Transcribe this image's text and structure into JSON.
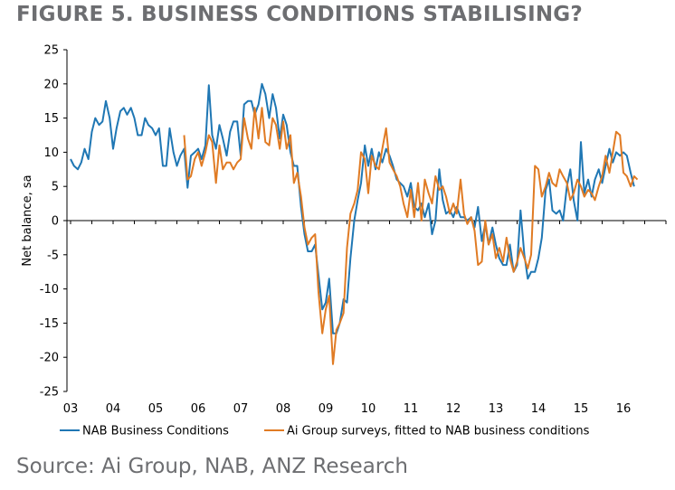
{
  "title": "FIGURE 5. BUSINESS CONDITIONS STABILISING?",
  "source": "Source: Ai Group, NAB, ANZ Research",
  "chart_data": {
    "type": "line",
    "title": "FIGURE 5. BUSINESS CONDITIONS STABILISING?",
    "ylabel": "Net balance, sa",
    "xlabel": "",
    "ylim": [
      -25,
      25
    ],
    "yticks": [
      25,
      20,
      15,
      10,
      5,
      0,
      -5,
      -10,
      -15,
      -20,
      -25
    ],
    "xlim": [
      2003.0,
      2017.0
    ],
    "xticks": [
      {
        "label": "03",
        "value": 2003
      },
      {
        "label": "04",
        "value": 2004
      },
      {
        "label": "05",
        "value": 2005
      },
      {
        "label": "06",
        "value": 2006
      },
      {
        "label": "07",
        "value": 2007
      },
      {
        "label": "08",
        "value": 2008
      },
      {
        "label": "09",
        "value": 2009
      },
      {
        "label": "10",
        "value": 2010
      },
      {
        "label": "11",
        "value": 2011
      },
      {
        "label": "12",
        "value": 2012
      },
      {
        "label": "13",
        "value": 2013
      },
      {
        "label": "14",
        "value": 2014
      },
      {
        "label": "15",
        "value": 2015
      },
      {
        "label": "16",
        "value": 2016
      }
    ],
    "grid": false,
    "legend_position": "bottom",
    "series": [
      {
        "name": "NAB Business Conditions",
        "color": "#1f77b4",
        "points": [
          [
            2003.0,
            9.0
          ],
          [
            2003.08,
            8.0
          ],
          [
            2003.17,
            7.5
          ],
          [
            2003.25,
            8.5
          ],
          [
            2003.33,
            10.5
          ],
          [
            2003.42,
            9.0
          ],
          [
            2003.5,
            13.0
          ],
          [
            2003.58,
            15.0
          ],
          [
            2003.67,
            14.0
          ],
          [
            2003.75,
            14.5
          ],
          [
            2003.83,
            17.5
          ],
          [
            2003.92,
            15.0
          ],
          [
            2004.0,
            10.5
          ],
          [
            2004.08,
            13.5
          ],
          [
            2004.17,
            16.0
          ],
          [
            2004.25,
            16.5
          ],
          [
            2004.33,
            15.5
          ],
          [
            2004.42,
            16.5
          ],
          [
            2004.5,
            15.0
          ],
          [
            2004.58,
            12.5
          ],
          [
            2004.67,
            12.5
          ],
          [
            2004.75,
            15.0
          ],
          [
            2004.83,
            14.0
          ],
          [
            2004.92,
            13.5
          ],
          [
            2005.0,
            12.5
          ],
          [
            2005.08,
            13.5
          ],
          [
            2005.17,
            8.0
          ],
          [
            2005.25,
            8.0
          ],
          [
            2005.33,
            13.5
          ],
          [
            2005.42,
            10.0
          ],
          [
            2005.5,
            8.0
          ],
          [
            2005.58,
            9.5
          ],
          [
            2005.67,
            10.5
          ],
          [
            2005.75,
            4.8
          ],
          [
            2005.83,
            9.5
          ],
          [
            2005.92,
            10.0
          ],
          [
            2006.0,
            10.5
          ],
          [
            2006.08,
            9.0
          ],
          [
            2006.17,
            11.0
          ],
          [
            2006.25,
            19.8
          ],
          [
            2006.33,
            12.5
          ],
          [
            2006.42,
            10.5
          ],
          [
            2006.5,
            14.0
          ],
          [
            2006.58,
            12.0
          ],
          [
            2006.67,
            9.5
          ],
          [
            2006.75,
            13.0
          ],
          [
            2006.83,
            14.5
          ],
          [
            2006.92,
            14.5
          ],
          [
            2007.0,
            9.5
          ],
          [
            2007.08,
            17.0
          ],
          [
            2007.17,
            17.5
          ],
          [
            2007.25,
            17.5
          ],
          [
            2007.33,
            15.5
          ],
          [
            2007.42,
            17.0
          ],
          [
            2007.5,
            20.0
          ],
          [
            2007.58,
            18.5
          ],
          [
            2007.67,
            15.0
          ],
          [
            2007.75,
            18.5
          ],
          [
            2007.83,
            16.5
          ],
          [
            2007.92,
            12.0
          ],
          [
            2008.0,
            15.5
          ],
          [
            2008.08,
            14.0
          ],
          [
            2008.17,
            10.0
          ],
          [
            2008.25,
            8.0
          ],
          [
            2008.33,
            8.0
          ],
          [
            2008.42,
            2.0
          ],
          [
            2008.5,
            -2.0
          ],
          [
            2008.58,
            -4.5
          ],
          [
            2008.67,
            -4.5
          ],
          [
            2008.75,
            -3.5
          ],
          [
            2008.83,
            -8.0
          ],
          [
            2008.92,
            -13.0
          ],
          [
            2009.0,
            -12.0
          ],
          [
            2009.08,
            -8.5
          ],
          [
            2009.17,
            -16.5
          ],
          [
            2009.25,
            -16.5
          ],
          [
            2009.33,
            -15.0
          ],
          [
            2009.42,
            -11.5
          ],
          [
            2009.5,
            -12.0
          ],
          [
            2009.58,
            -5.5
          ],
          [
            2009.67,
            0.0
          ],
          [
            2009.75,
            3.0
          ],
          [
            2009.83,
            5.5
          ],
          [
            2009.92,
            11.0
          ],
          [
            2010.0,
            8.0
          ],
          [
            2010.08,
            10.5
          ],
          [
            2010.17,
            7.5
          ],
          [
            2010.25,
            10.0
          ],
          [
            2010.33,
            8.5
          ],
          [
            2010.42,
            10.5
          ],
          [
            2010.5,
            9.5
          ],
          [
            2010.58,
            8.0
          ],
          [
            2010.67,
            6.0
          ],
          [
            2010.75,
            5.5
          ],
          [
            2010.83,
            5.0
          ],
          [
            2010.92,
            3.5
          ],
          [
            2011.0,
            5.5
          ],
          [
            2011.08,
            2.0
          ],
          [
            2011.17,
            1.5
          ],
          [
            2011.25,
            2.5
          ],
          [
            2011.33,
            0.5
          ],
          [
            2011.42,
            2.5
          ],
          [
            2011.5,
            -2.0
          ],
          [
            2011.58,
            0.0
          ],
          [
            2011.67,
            7.5
          ],
          [
            2011.75,
            3.0
          ],
          [
            2011.83,
            1.0
          ],
          [
            2011.92,
            1.5
          ],
          [
            2012.0,
            0.5
          ],
          [
            2012.08,
            2.0
          ],
          [
            2012.17,
            0.5
          ],
          [
            2012.25,
            0.5
          ],
          [
            2012.33,
            0.0
          ],
          [
            2012.42,
            0.5
          ],
          [
            2012.5,
            -1.0
          ],
          [
            2012.58,
            2.0
          ],
          [
            2012.67,
            -3.0
          ],
          [
            2012.75,
            -0.5
          ],
          [
            2012.83,
            -3.5
          ],
          [
            2012.92,
            -1.0
          ],
          [
            2013.0,
            -3.5
          ],
          [
            2013.08,
            -5.5
          ],
          [
            2013.17,
            -6.5
          ],
          [
            2013.25,
            -6.5
          ],
          [
            2013.33,
            -3.5
          ],
          [
            2013.42,
            -7.5
          ],
          [
            2013.5,
            -6.5
          ],
          [
            2013.58,
            1.5
          ],
          [
            2013.67,
            -5.0
          ],
          [
            2013.75,
            -8.5
          ],
          [
            2013.83,
            -7.5
          ],
          [
            2013.92,
            -7.5
          ],
          [
            2014.0,
            -5.5
          ],
          [
            2014.08,
            -2.5
          ],
          [
            2014.17,
            4.5
          ],
          [
            2014.25,
            6.0
          ],
          [
            2014.33,
            1.5
          ],
          [
            2014.42,
            1.0
          ],
          [
            2014.5,
            1.5
          ],
          [
            2014.58,
            0.0
          ],
          [
            2014.67,
            5.0
          ],
          [
            2014.75,
            7.5
          ],
          [
            2014.83,
            3.0
          ],
          [
            2014.92,
            0.0
          ],
          [
            2015.0,
            11.5
          ],
          [
            2015.08,
            4.0
          ],
          [
            2015.17,
            6.0
          ],
          [
            2015.25,
            3.5
          ],
          [
            2015.33,
            6.0
          ],
          [
            2015.42,
            7.5
          ],
          [
            2015.5,
            5.5
          ],
          [
            2015.58,
            8.0
          ],
          [
            2015.67,
            10.5
          ],
          [
            2015.75,
            8.5
          ],
          [
            2015.83,
            10.0
          ],
          [
            2015.92,
            9.5
          ],
          [
            2016.0,
            10.0
          ],
          [
            2016.08,
            9.5
          ],
          [
            2016.17,
            7.0
          ],
          [
            2016.25,
            5.0
          ]
        ]
      },
      {
        "name": "Ai Group surveys, fitted to NAB business conditions",
        "color": "#e07b24",
        "points": [
          [
            2005.67,
            12.5
          ],
          [
            2005.75,
            6.0
          ],
          [
            2005.83,
            6.5
          ],
          [
            2005.92,
            9.0
          ],
          [
            2006.0,
            10.0
          ],
          [
            2006.08,
            8.0
          ],
          [
            2006.17,
            10.0
          ],
          [
            2006.25,
            12.5
          ],
          [
            2006.33,
            11.5
          ],
          [
            2006.42,
            5.5
          ],
          [
            2006.5,
            11.0
          ],
          [
            2006.58,
            7.5
          ],
          [
            2006.67,
            8.5
          ],
          [
            2006.75,
            8.5
          ],
          [
            2006.83,
            7.5
          ],
          [
            2006.92,
            8.5
          ],
          [
            2007.0,
            9.0
          ],
          [
            2007.08,
            15.0
          ],
          [
            2007.17,
            12.0
          ],
          [
            2007.25,
            10.5
          ],
          [
            2007.33,
            16.5
          ],
          [
            2007.42,
            12.0
          ],
          [
            2007.5,
            16.5
          ],
          [
            2007.58,
            11.5
          ],
          [
            2007.67,
            11.0
          ],
          [
            2007.75,
            15.0
          ],
          [
            2007.83,
            14.0
          ],
          [
            2007.92,
            10.5
          ],
          [
            2008.0,
            14.5
          ],
          [
            2008.08,
            10.5
          ],
          [
            2008.17,
            12.5
          ],
          [
            2008.25,
            5.5
          ],
          [
            2008.33,
            7.0
          ],
          [
            2008.42,
            3.5
          ],
          [
            2008.5,
            -1.0
          ],
          [
            2008.58,
            -3.5
          ],
          [
            2008.67,
            -2.5
          ],
          [
            2008.75,
            -2.0
          ],
          [
            2008.83,
            -10.5
          ],
          [
            2008.92,
            -16.5
          ],
          [
            2009.0,
            -13.0
          ],
          [
            2009.08,
            -11.0
          ],
          [
            2009.17,
            -21.0
          ],
          [
            2009.25,
            -16.0
          ],
          [
            2009.33,
            -15.0
          ],
          [
            2009.42,
            -13.5
          ],
          [
            2009.5,
            -4.0
          ],
          [
            2009.58,
            1.0
          ],
          [
            2009.67,
            2.5
          ],
          [
            2009.75,
            4.5
          ],
          [
            2009.83,
            10.0
          ],
          [
            2009.92,
            9.0
          ],
          [
            2010.0,
            4.0
          ],
          [
            2010.08,
            9.5
          ],
          [
            2010.17,
            8.0
          ],
          [
            2010.25,
            7.5
          ],
          [
            2010.33,
            10.5
          ],
          [
            2010.42,
            13.5
          ],
          [
            2010.5,
            8.5
          ],
          [
            2010.58,
            7.5
          ],
          [
            2010.67,
            6.5
          ],
          [
            2010.75,
            5.0
          ],
          [
            2010.83,
            2.5
          ],
          [
            2010.92,
            0.5
          ],
          [
            2011.0,
            4.5
          ],
          [
            2011.08,
            0.5
          ],
          [
            2011.17,
            5.5
          ],
          [
            2011.25,
            0.0
          ],
          [
            2011.33,
            6.0
          ],
          [
            2011.42,
            4.0
          ],
          [
            2011.5,
            2.5
          ],
          [
            2011.58,
            6.5
          ],
          [
            2011.67,
            4.5
          ],
          [
            2011.75,
            5.0
          ],
          [
            2011.83,
            3.5
          ],
          [
            2011.92,
            1.0
          ],
          [
            2012.0,
            2.5
          ],
          [
            2012.08,
            1.0
          ],
          [
            2012.17,
            6.0
          ],
          [
            2012.25,
            1.0
          ],
          [
            2012.33,
            -0.5
          ],
          [
            2012.42,
            0.5
          ],
          [
            2012.5,
            -1.5
          ],
          [
            2012.58,
            -6.5
          ],
          [
            2012.67,
            -6.0
          ],
          [
            2012.75,
            0.0
          ],
          [
            2012.83,
            -3.5
          ],
          [
            2012.92,
            -2.0
          ],
          [
            2013.0,
            -5.5
          ],
          [
            2013.08,
            -4.0
          ],
          [
            2013.17,
            -6.0
          ],
          [
            2013.25,
            -2.5
          ],
          [
            2013.33,
            -5.5
          ],
          [
            2013.42,
            -7.5
          ],
          [
            2013.5,
            -6.0
          ],
          [
            2013.58,
            -4.0
          ],
          [
            2013.67,
            -5.5
          ],
          [
            2013.75,
            -7.0
          ],
          [
            2013.83,
            -5.0
          ],
          [
            2013.92,
            8.0
          ],
          [
            2014.0,
            7.5
          ],
          [
            2014.08,
            3.5
          ],
          [
            2014.17,
            5.0
          ],
          [
            2014.25,
            7.0
          ],
          [
            2014.33,
            5.5
          ],
          [
            2014.42,
            5.0
          ],
          [
            2014.5,
            7.5
          ],
          [
            2014.58,
            6.5
          ],
          [
            2014.67,
            5.5
          ],
          [
            2014.75,
            3.0
          ],
          [
            2014.83,
            4.0
          ],
          [
            2014.92,
            6.0
          ],
          [
            2015.0,
            5.0
          ],
          [
            2015.08,
            3.5
          ],
          [
            2015.17,
            4.5
          ],
          [
            2015.25,
            4.0
          ],
          [
            2015.33,
            3.0
          ],
          [
            2015.42,
            5.0
          ],
          [
            2015.5,
            6.5
          ],
          [
            2015.58,
            9.5
          ],
          [
            2015.67,
            7.0
          ],
          [
            2015.75,
            10.0
          ],
          [
            2015.83,
            13.0
          ],
          [
            2015.92,
            12.5
          ],
          [
            2016.0,
            7.0
          ],
          [
            2016.08,
            6.5
          ],
          [
            2016.17,
            5.0
          ],
          [
            2016.25,
            6.5
          ],
          [
            2016.33,
            6.0
          ]
        ]
      }
    ]
  }
}
